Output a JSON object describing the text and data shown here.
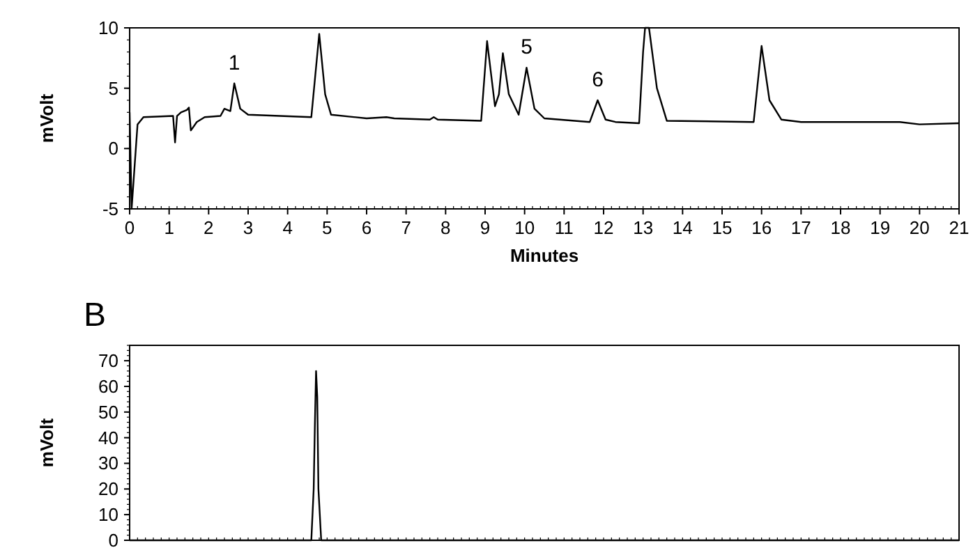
{
  "chart_data": [
    {
      "type": "line",
      "xlabel": "Minutes",
      "ylabel": "mVolt",
      "xlim": [
        0,
        21
      ],
      "xticks": [
        0,
        1,
        2,
        3,
        4,
        5,
        6,
        7,
        8,
        9,
        10,
        11,
        12,
        13,
        14,
        15,
        16,
        17,
        18,
        19,
        20,
        21
      ],
      "ylim": [
        -5,
        10
      ],
      "yticks": [
        -5,
        0,
        5,
        10
      ],
      "grid": false,
      "marker": "none",
      "line_style": "solid",
      "series": [
        {
          "color": "#000000",
          "x": [
            0,
            0.05,
            0.2,
            0.35,
            1.1,
            1.15,
            1.2,
            1.3,
            1.45,
            1.5,
            1.55,
            1.7,
            1.9,
            2.3,
            2.4,
            2.55,
            2.65,
            2.8,
            3.0,
            4.6,
            4.8,
            4.95,
            5.1,
            6.0,
            6.5,
            6.7,
            7.6,
            7.7,
            7.8,
            8.9,
            9.05,
            9.25,
            9.35,
            9.45,
            9.6,
            9.85,
            10.05,
            10.25,
            10.5,
            11.65,
            11.85,
            12.05,
            12.3,
            12.9,
            13.0,
            13.05,
            13.15,
            13.35,
            13.6,
            15.8,
            16.0,
            16.2,
            16.5,
            17,
            19.5,
            20.0,
            21
          ],
          "values": [
            3,
            -5,
            2.0,
            2.6,
            2.7,
            0.5,
            2.7,
            3.0,
            3.2,
            3.4,
            1.5,
            2.2,
            2.6,
            2.7,
            3.3,
            3.1,
            5.4,
            3.3,
            2.8,
            2.6,
            9.5,
            4.5,
            2.8,
            2.5,
            2.6,
            2.5,
            2.4,
            2.6,
            2.4,
            2.3,
            8.9,
            3.5,
            4.5,
            7.9,
            4.5,
            2.8,
            6.7,
            3.3,
            2.5,
            2.2,
            4.0,
            2.4,
            2.2,
            2.1,
            8,
            10,
            10,
            5,
            2.3,
            2.2,
            8.5,
            4,
            2.4,
            2.2,
            2.2,
            2.0,
            2.1
          ]
        }
      ],
      "annotations": [
        {
          "text": "1",
          "x": 2.65,
          "y": 5.4
        },
        {
          "text": "5",
          "x": 10.05,
          "y": 6.7
        },
        {
          "text": "6",
          "x": 11.85,
          "y": 4.0
        }
      ]
    },
    {
      "type": "line",
      "title": "B",
      "ylabel": "mVolt",
      "xlim": [
        0,
        21
      ],
      "ylim": [
        0,
        76
      ],
      "yticks": [
        0,
        10,
        20,
        30,
        40,
        50,
        60,
        70
      ],
      "tick_labels": "y",
      "grid": false,
      "marker": "none",
      "line_style": "solid",
      "series": [
        {
          "color": "#000000",
          "x": [
            0,
            4.6,
            4.66,
            4.69,
            4.72,
            4.75,
            4.78,
            4.85,
            21
          ],
          "values": [
            0,
            0,
            20,
            45,
            66,
            56,
            20,
            0,
            0
          ]
        }
      ]
    }
  ]
}
